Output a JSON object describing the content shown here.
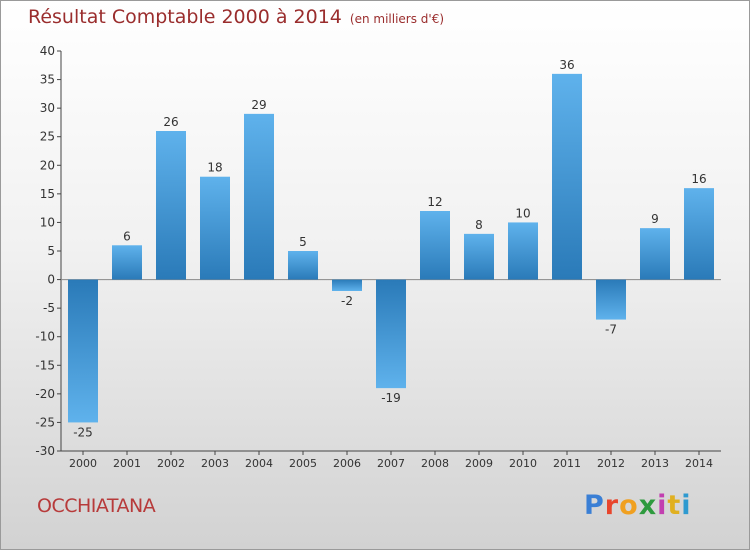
{
  "header": {
    "title": "Résultat Comptable 2000 à 2014",
    "subtitle": "(en milliers d'€)"
  },
  "footer": {
    "commune": "OCCHIATANA",
    "brand": "Proxiti",
    "brand_colors": [
      "#3a7fd5",
      "#e8452c",
      "#f0a020",
      "#2e9a3e",
      "#c23fb0",
      "#e0b020",
      "#2e9ad0"
    ]
  },
  "chart_data": {
    "type": "bar",
    "title": "Résultat Comptable 2000 à 2014",
    "subtitle": "(en milliers d'€)",
    "xlabel": "",
    "ylabel": "",
    "categories": [
      "2000",
      "2001",
      "2002",
      "2003",
      "2004",
      "2005",
      "2006",
      "2007",
      "2008",
      "2009",
      "2010",
      "2011",
      "2012",
      "2013",
      "2014"
    ],
    "values": [
      -25,
      6,
      26,
      18,
      29,
      5,
      -2,
      -19,
      12,
      8,
      10,
      36,
      -7,
      9,
      16
    ],
    "ylim": [
      -30,
      40
    ],
    "yticks": [
      -30,
      -25,
      -20,
      -15,
      -10,
      -5,
      0,
      5,
      10,
      15,
      20,
      25,
      30,
      35,
      40
    ],
    "grid": false,
    "legend": "none",
    "colors": {
      "bar_light": "#5fb2ec",
      "bar_dark": "#2a7ab8",
      "axis": "#444444"
    }
  }
}
